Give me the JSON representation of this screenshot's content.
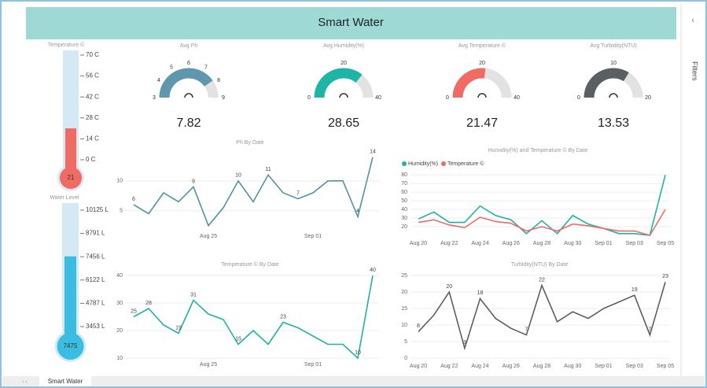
{
  "header": {
    "title": "Smart Water"
  },
  "sidebar": {
    "label": "Filters"
  },
  "tabs": [
    "Smart Water"
  ],
  "thermometers": [
    {
      "title": "Temperature ©",
      "value": 21,
      "ylim": [
        0,
        70
      ],
      "color": "#ef6b63",
      "ticks": [
        {
          "value": 70,
          "label": "70 C"
        },
        {
          "value": 56,
          "label": "56 C"
        },
        {
          "value": 42,
          "label": "42 C"
        },
        {
          "value": 28,
          "label": "28 C"
        },
        {
          "value": 14,
          "label": "14 C"
        },
        {
          "value": 0,
          "label": "0 C"
        }
      ]
    },
    {
      "title": "Water Level",
      "value": 7475,
      "ylim": [
        3453,
        10125
      ],
      "color": "#3bbde2",
      "ticks": [
        {
          "value": 10125,
          "label": "10125 L"
        },
        {
          "value": 8791,
          "label": "8791 L"
        },
        {
          "value": 7456,
          "label": "7456 L"
        },
        {
          "value": 6122,
          "label": "6122 L"
        },
        {
          "value": 4787,
          "label": "4787 L"
        },
        {
          "value": 3453,
          "label": "3453 L"
        }
      ]
    }
  ],
  "gauges": [
    {
      "title": "Avg Ph",
      "value": 7.82,
      "range": [
        3,
        9
      ],
      "ticks": [
        3,
        4,
        5,
        6,
        7,
        8,
        9
      ],
      "color": "#5f97ad"
    },
    {
      "title": "Avg Humidity(%)",
      "value": 28.65,
      "range": [
        0,
        40
      ],
      "ticks": [
        0,
        20,
        40
      ],
      "color": "#1db5a5"
    },
    {
      "title": "Avg Temperature ©",
      "value": 21.47,
      "range": [
        0,
        40
      ],
      "ticks": [
        0,
        20,
        40
      ],
      "color": "#ef6b63"
    },
    {
      "title": "Avg Turbidity(NTU)",
      "value": 13.53,
      "range": [
        0,
        20
      ],
      "ticks": [
        0,
        10,
        20
      ],
      "color": "#5a5f63"
    }
  ],
  "charts": [
    {
      "type": "line",
      "title": "Ph By Date",
      "categories": [
        null,
        null,
        null,
        null,
        null,
        "Aug 25",
        null,
        null,
        null,
        null,
        null,
        null,
        "Sep 01",
        null,
        null,
        null,
        null
      ],
      "ylim": [
        1,
        15
      ],
      "yticks": [
        5,
        10
      ],
      "series": [
        {
          "color": "#4f93a8",
          "values": [
            6,
            4.5,
            8,
            6.5,
            9,
            2.5,
            5.5,
            10,
            6.5,
            11,
            8,
            7,
            8,
            10,
            10,
            4,
            14
          ],
          "value_labels": [
            "6",
            null,
            null,
            null,
            "9",
            null,
            null,
            "10",
            null,
            "11",
            null,
            "7",
            null,
            null,
            null,
            "4",
            "14"
          ]
        }
      ]
    },
    {
      "type": "line",
      "title": "Temperature © By Date",
      "categories": [
        null,
        null,
        null,
        null,
        null,
        "Aug 25",
        null,
        null,
        null,
        null,
        null,
        null,
        "Sep 01",
        null,
        null,
        null,
        null
      ],
      "ylim": [
        8,
        42
      ],
      "yticks": [
        10,
        20,
        30,
        40
      ],
      "series": [
        {
          "color": "#1fb2a4",
          "values": [
            25,
            28,
            22,
            19,
            31,
            26,
            24,
            15,
            20,
            15,
            23,
            21,
            18,
            15,
            15,
            10,
            40
          ],
          "value_labels": [
            "25",
            "28",
            null,
            "19",
            "31",
            null,
            null,
            "15",
            null,
            null,
            "23",
            null,
            null,
            null,
            null,
            "10",
            "40"
          ]
        }
      ]
    },
    {
      "type": "line",
      "title": "Humidity(%) and Temperature © By Date",
      "categories": [
        "Aug 20",
        null,
        "Aug 22",
        null,
        "Aug 24",
        null,
        "Aug 26",
        null,
        "Aug 28",
        null,
        "Aug 30",
        null,
        "Sep 01",
        null,
        "Sep 03",
        null,
        "Sep 05"
      ],
      "ylim": [
        10,
        83
      ],
      "yticks": [
        20,
        30,
        40,
        50,
        60,
        70,
        80
      ],
      "series": [
        {
          "name": "Humidity(%)",
          "color": "#1fb2a4",
          "values": [
            29,
            37,
            25,
            25,
            44,
            33,
            28,
            12,
            27,
            12,
            33,
            23,
            18,
            12,
            12,
            10,
            80
          ]
        },
        {
          "name": "Temperature ©",
          "color": "#ef6b63",
          "values": [
            25,
            28,
            22,
            19,
            31,
            26,
            24,
            15,
            20,
            15,
            23,
            21,
            18,
            15,
            15,
            10,
            40
          ]
        }
      ]
    },
    {
      "type": "line",
      "title": "Turbidity(NTU) By Date",
      "categories": [
        "Aug 20",
        null,
        "Aug 22",
        null,
        "Aug 24",
        null,
        "Aug 26",
        null,
        "Aug 28",
        null,
        "Aug 30",
        null,
        "Sep 01",
        null,
        "Sep 03",
        null,
        "Sep 05"
      ],
      "ylim": [
        0,
        25
      ],
      "yticks": [
        0,
        5,
        10,
        15,
        20,
        25
      ],
      "series": [
        {
          "color": "#5a5f63",
          "values": [
            8,
            13,
            20,
            3,
            18,
            12,
            9,
            7,
            22,
            11,
            14,
            12,
            15,
            17,
            19,
            7,
            23
          ],
          "value_labels": [
            "8",
            null,
            "20",
            "3",
            "18",
            null,
            null,
            "7",
            "22",
            null,
            null,
            null,
            null,
            null,
            "19",
            "7",
            "23"
          ]
        }
      ]
    }
  ]
}
